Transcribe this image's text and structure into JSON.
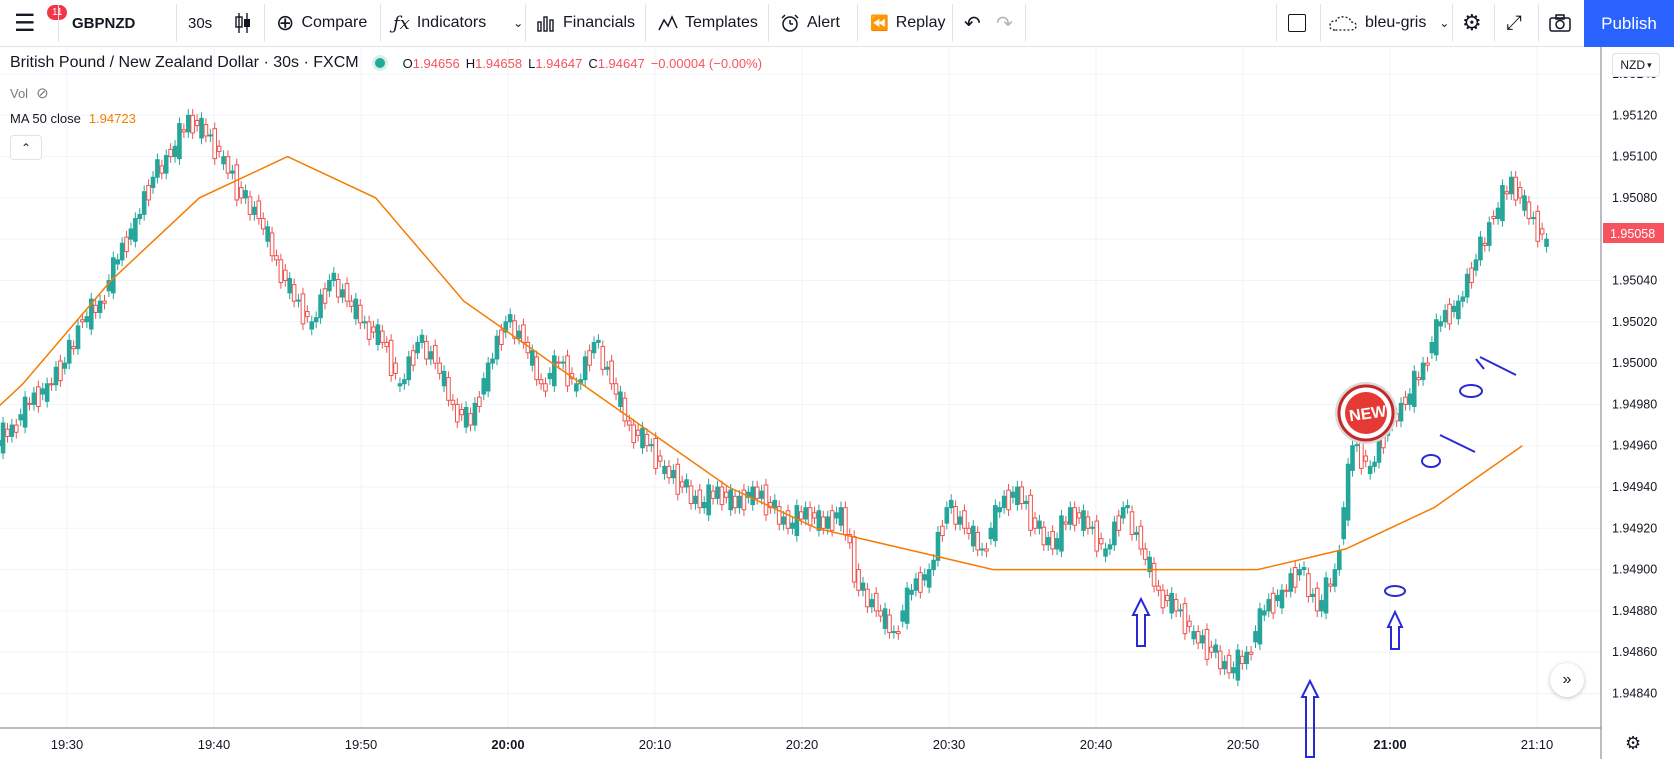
{
  "toolbar": {
    "menu_badge": "11",
    "symbol": "GBPNZD",
    "interval": "30s",
    "compare_label": "Compare",
    "indicators_label": "Indicators",
    "financials_label": "Financials",
    "templates_label": "Templates",
    "alert_label": "Alert",
    "replay_label": "Replay",
    "layout_name": "bleu-gris",
    "publish_label": "Publish"
  },
  "legend": {
    "title": "British Pound / New Zealand Dollar · 30s · FXCM",
    "o_key": "O",
    "o_val": "1.94656",
    "h_key": "H",
    "h_val": "1.94658",
    "l_key": "L",
    "l_val": "1.94647",
    "c_key": "C",
    "c_val": "1.94647",
    "change": "−0.00004 (−0.00%)",
    "vol_label": "Vol",
    "ma_label": "MA 50 close",
    "ma_value": "1.94723"
  },
  "price_axis": {
    "currency": "NZD",
    "current_price": "1.95058"
  },
  "colors": {
    "up": "#26a69a",
    "down": "#ef5350",
    "ma": "#f57c00",
    "annotation": "#2a2ad4",
    "price_tag": "#f7525f",
    "accent": "#2962ff"
  },
  "chart_data": {
    "type": "candlestick",
    "symbol": "GBPNZD",
    "y_ticks": [
      "1.95140",
      "1.95120",
      "1.95100",
      "1.95080",
      "1.95060",
      "1.95040",
      "1.95020",
      "1.95000",
      "1.94980",
      "1.94960",
      "1.94940",
      "1.94920",
      "1.94900",
      "1.94880",
      "1.94860",
      "1.94840"
    ],
    "x_ticks": [
      "19:30",
      "19:40",
      "19:50",
      "20:00",
      "20:10",
      "20:20",
      "20:30",
      "20:40",
      "20:50",
      "21:00",
      "21:10"
    ],
    "x_range_min": [
      19,
      25.5
    ],
    "price_series_close": [
      [
        19.42,
        1.9496
      ],
      [
        19.44,
        1.9497
      ],
      [
        19.46,
        1.9498
      ],
      [
        19.48,
        1.9499
      ],
      [
        19.5,
        1.95
      ],
      [
        19.52,
        1.9502
      ],
      [
        19.54,
        1.9503
      ],
      [
        19.56,
        1.9505
      ],
      [
        19.58,
        1.9507
      ],
      [
        19.6,
        1.9509
      ],
      [
        19.62,
        1.951
      ],
      [
        19.64,
        1.9512
      ],
      [
        19.66,
        1.9511
      ],
      [
        19.68,
        1.951
      ],
      [
        19.7,
        1.9508
      ],
      [
        19.72,
        1.9507
      ],
      [
        19.74,
        1.9505
      ],
      [
        19.76,
        1.9503
      ],
      [
        19.78,
        1.9502
      ],
      [
        19.8,
        1.9504
      ],
      [
        19.82,
        1.9503
      ],
      [
        19.84,
        1.9502
      ],
      [
        19.86,
        1.9501
      ],
      [
        19.88,
        1.9499
      ],
      [
        19.9,
        1.9501
      ],
      [
        19.92,
        1.95
      ],
      [
        19.94,
        1.9498
      ],
      [
        19.96,
        1.9497
      ],
      [
        19.98,
        1.95
      ],
      [
        20.0,
        1.9502
      ],
      [
        20.02,
        1.9501
      ],
      [
        20.04,
        1.9499
      ],
      [
        20.06,
        1.95
      ],
      [
        20.08,
        1.9499
      ],
      [
        20.1,
        1.9501
      ],
      [
        20.12,
        1.9499
      ],
      [
        20.14,
        1.9497
      ],
      [
        20.16,
        1.9496
      ],
      [
        20.18,
        1.9495
      ],
      [
        20.2,
        1.9494
      ],
      [
        20.22,
        1.9493
      ],
      [
        20.24,
        1.9494
      ],
      [
        20.26,
        1.9493
      ],
      [
        20.28,
        1.9494
      ],
      [
        20.3,
        1.9493
      ],
      [
        20.32,
        1.9492
      ],
      [
        20.34,
        1.9493
      ],
      [
        20.36,
        1.9492
      ],
      [
        20.38,
        1.9493
      ],
      [
        20.4,
        1.9489
      ],
      [
        20.42,
        1.9488
      ],
      [
        20.44,
        1.9487
      ],
      [
        20.46,
        1.9489
      ],
      [
        20.48,
        1.949
      ],
      [
        20.5,
        1.9493
      ],
      [
        20.52,
        1.9492
      ],
      [
        20.54,
        1.9491
      ],
      [
        20.56,
        1.9493
      ],
      [
        20.58,
        1.9494
      ],
      [
        20.6,
        1.9492
      ],
      [
        20.62,
        1.9491
      ],
      [
        20.64,
        1.9493
      ],
      [
        20.66,
        1.9492
      ],
      [
        20.68,
        1.9491
      ],
      [
        20.7,
        1.9493
      ],
      [
        20.72,
        1.9491
      ],
      [
        20.74,
        1.9489
      ],
      [
        20.76,
        1.9488
      ],
      [
        20.78,
        1.9487
      ],
      [
        20.8,
        1.9486
      ],
      [
        20.82,
        1.9485
      ],
      [
        20.84,
        1.9486
      ],
      [
        20.86,
        1.9488
      ],
      [
        20.88,
        1.9489
      ],
      [
        20.9,
        1.949
      ],
      [
        20.92,
        1.9488
      ],
      [
        20.94,
        1.949
      ],
      [
        20.96,
        1.9496
      ],
      [
        20.98,
        1.9495
      ],
      [
        21.0,
        1.9497
      ],
      [
        21.02,
        1.9498
      ],
      [
        21.04,
        1.95
      ],
      [
        21.06,
        1.9502
      ],
      [
        21.08,
        1.9503
      ],
      [
        21.1,
        1.9505
      ],
      [
        21.12,
        1.9507
      ],
      [
        21.14,
        1.9509
      ],
      [
        21.16,
        1.9507
      ],
      [
        21.18,
        1.9506
      ]
    ],
    "ma_series": [
      [
        19.25,
        1.9493
      ],
      [
        19.35,
        1.9495
      ],
      [
        19.45,
        1.9499
      ],
      [
        19.55,
        1.9504
      ],
      [
        19.65,
        1.9508
      ],
      [
        19.75,
        1.951
      ],
      [
        19.85,
        1.9508
      ],
      [
        19.95,
        1.9503
      ],
      [
        20.05,
        1.95
      ],
      [
        20.15,
        1.9497
      ],
      [
        20.25,
        1.9494
      ],
      [
        20.35,
        1.9492
      ],
      [
        20.45,
        1.9491
      ],
      [
        20.55,
        1.949
      ],
      [
        20.65,
        1.949
      ],
      [
        20.75,
        1.949
      ],
      [
        20.85,
        1.949
      ],
      [
        20.95,
        1.9491
      ],
      [
        21.05,
        1.9493
      ],
      [
        21.15,
        1.9496
      ]
    ]
  },
  "annotations": {
    "new_sticker": "NEW"
  }
}
